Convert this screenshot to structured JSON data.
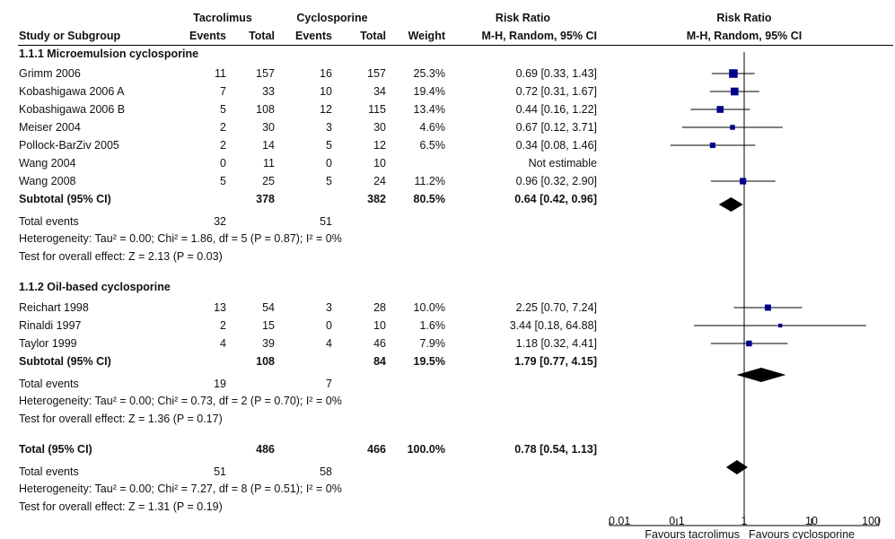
{
  "header": {
    "group1": "Tacrolimus",
    "group2": "Cyclosporine",
    "rr_group": "Risk Ratio",
    "plot_group": "Risk Ratio",
    "study": "Study or Subgroup",
    "events1": "Events",
    "total1": "Total",
    "events2": "Events",
    "total2": "Total",
    "weight": "Weight",
    "rr_method": "M-H, Random, 95% CI",
    "plot_method": "M-H, Random, 95% CI"
  },
  "subgroups": [
    {
      "title": "1.1.1 Microemulsion cyclosporine",
      "studies": [
        {
          "name": "Grimm 2006",
          "e1": "11",
          "t1": "157",
          "e2": "16",
          "t2": "157",
          "weight": "25.3%",
          "rr_text": "0.69 [0.33, 1.43]"
        },
        {
          "name": "Kobashigawa 2006 A",
          "e1": "7",
          "t1": "33",
          "e2": "10",
          "t2": "34",
          "weight": "19.4%",
          "rr_text": "0.72 [0.31, 1.67]"
        },
        {
          "name": "Kobashigawa 2006 B",
          "e1": "5",
          "t1": "108",
          "e2": "12",
          "t2": "115",
          "weight": "13.4%",
          "rr_text": "0.44 [0.16, 1.22]"
        },
        {
          "name": "Meiser 2004",
          "e1": "2",
          "t1": "30",
          "e2": "3",
          "t2": "30",
          "weight": "4.6%",
          "rr_text": "0.67 [0.12, 3.71]"
        },
        {
          "name": "Pollock-BarZiv 2005",
          "e1": "2",
          "t1": "14",
          "e2": "5",
          "t2": "12",
          "weight": "6.5%",
          "rr_text": "0.34 [0.08, 1.46]"
        },
        {
          "name": "Wang 2004",
          "e1": "0",
          "t1": "11",
          "e2": "0",
          "t2": "10",
          "weight": "",
          "rr_text": "Not estimable"
        },
        {
          "name": "Wang 2008",
          "e1": "5",
          "t1": "25",
          "e2": "5",
          "t2": "24",
          "weight": "11.2%",
          "rr_text": "0.96 [0.32, 2.90]"
        }
      ],
      "subtotal": {
        "label": "Subtotal (95% CI)",
        "t1": "378",
        "t2": "382",
        "weight": "80.5%",
        "rr_text": "0.64 [0.42, 0.96]"
      },
      "total_events": {
        "label": "Total events",
        "e1": "32",
        "e2": "51"
      },
      "heterogeneity": "Heterogeneity: Tau² = 0.00; Chi² = 1.86, df = 5 (P = 0.87); I² = 0%",
      "overall": "Test for overall effect: Z = 2.13 (P = 0.03)"
    },
    {
      "title": "1.1.2 Oil-based cyclosporine",
      "studies": [
        {
          "name": "Reichart 1998",
          "e1": "13",
          "t1": "54",
          "e2": "3",
          "t2": "28",
          "weight": "10.0%",
          "rr_text": "2.25 [0.70, 7.24]"
        },
        {
          "name": "Rinaldi 1997",
          "e1": "2",
          "t1": "15",
          "e2": "0",
          "t2": "10",
          "weight": "1.6%",
          "rr_text": "3.44 [0.18, 64.88]"
        },
        {
          "name": "Taylor 1999",
          "e1": "4",
          "t1": "39",
          "e2": "4",
          "t2": "46",
          "weight": "7.9%",
          "rr_text": "1.18 [0.32, 4.41]"
        }
      ],
      "subtotal": {
        "label": "Subtotal (95% CI)",
        "t1": "108",
        "t2": "84",
        "weight": "19.5%",
        "rr_text": "1.79 [0.77, 4.15]"
      },
      "total_events": {
        "label": "Total events",
        "e1": "19",
        "e2": "7"
      },
      "heterogeneity": "Heterogeneity: Tau² = 0.00; Chi² = 0.73, df = 2 (P = 0.70); I² = 0%",
      "overall": "Test for overall effect: Z = 1.36 (P = 0.17)"
    }
  ],
  "total": {
    "label": "Total (95% CI)",
    "t1": "486",
    "t2": "466",
    "weight": "100.0%",
    "rr_text": "0.78 [0.54, 1.13]",
    "total_events": {
      "label": "Total events",
      "e1": "51",
      "e2": "58"
    },
    "heterogeneity": "Heterogeneity: Tau² = 0.00; Chi² = 7.27, df = 8 (P = 0.51); I² = 0%",
    "overall": "Test for overall effect: Z = 1.31 (P = 0.19)"
  },
  "colors": {
    "study_square": "#00008b",
    "diamond": "#000000",
    "text": "#111111"
  },
  "chart_data": {
    "type": "forest",
    "x_scale": "log",
    "xlim": [
      0.01,
      100
    ],
    "ticks": [
      {
        "value": 0.01,
        "label": "0.01"
      },
      {
        "value": 0.1,
        "label": "0.1"
      },
      {
        "value": 1,
        "label": "1"
      },
      {
        "value": 10,
        "label": "10"
      },
      {
        "value": 100,
        "label": "100"
      }
    ],
    "reference_line": 1,
    "favours_left": "Favours tacrolimus",
    "favours_right": "Favours cyclosporine",
    "studies": [
      {
        "name": "Grimm 2006",
        "rr": 0.69,
        "lo": 0.33,
        "hi": 1.43,
        "weight": 25.3
      },
      {
        "name": "Kobashigawa 2006 A",
        "rr": 0.72,
        "lo": 0.31,
        "hi": 1.67,
        "weight": 19.4
      },
      {
        "name": "Kobashigawa 2006 B",
        "rr": 0.44,
        "lo": 0.16,
        "hi": 1.22,
        "weight": 13.4
      },
      {
        "name": "Meiser 2004",
        "rr": 0.67,
        "lo": 0.12,
        "hi": 3.71,
        "weight": 4.6
      },
      {
        "name": "Pollock-BarZiv 2005",
        "rr": 0.34,
        "lo": 0.08,
        "hi": 1.46,
        "weight": 6.5
      },
      {
        "name": "Wang 2008",
        "rr": 0.96,
        "lo": 0.32,
        "hi": 2.9,
        "weight": 11.2
      },
      {
        "name": "Reichart 1998",
        "rr": 2.25,
        "lo": 0.7,
        "hi": 7.24,
        "weight": 10.0
      },
      {
        "name": "Rinaldi 1997",
        "rr": 3.44,
        "lo": 0.18,
        "hi": 64.88,
        "weight": 1.6
      },
      {
        "name": "Taylor 1999",
        "rr": 1.18,
        "lo": 0.32,
        "hi": 4.41,
        "weight": 7.9
      }
    ],
    "diamonds": [
      {
        "name": "Subtotal 1.1.1",
        "rr": 0.64,
        "lo": 0.42,
        "hi": 0.96
      },
      {
        "name": "Subtotal 1.1.2",
        "rr": 1.79,
        "lo": 0.77,
        "hi": 4.15
      },
      {
        "name": "Total",
        "rr": 0.78,
        "lo": 0.54,
        "hi": 1.13
      }
    ]
  }
}
